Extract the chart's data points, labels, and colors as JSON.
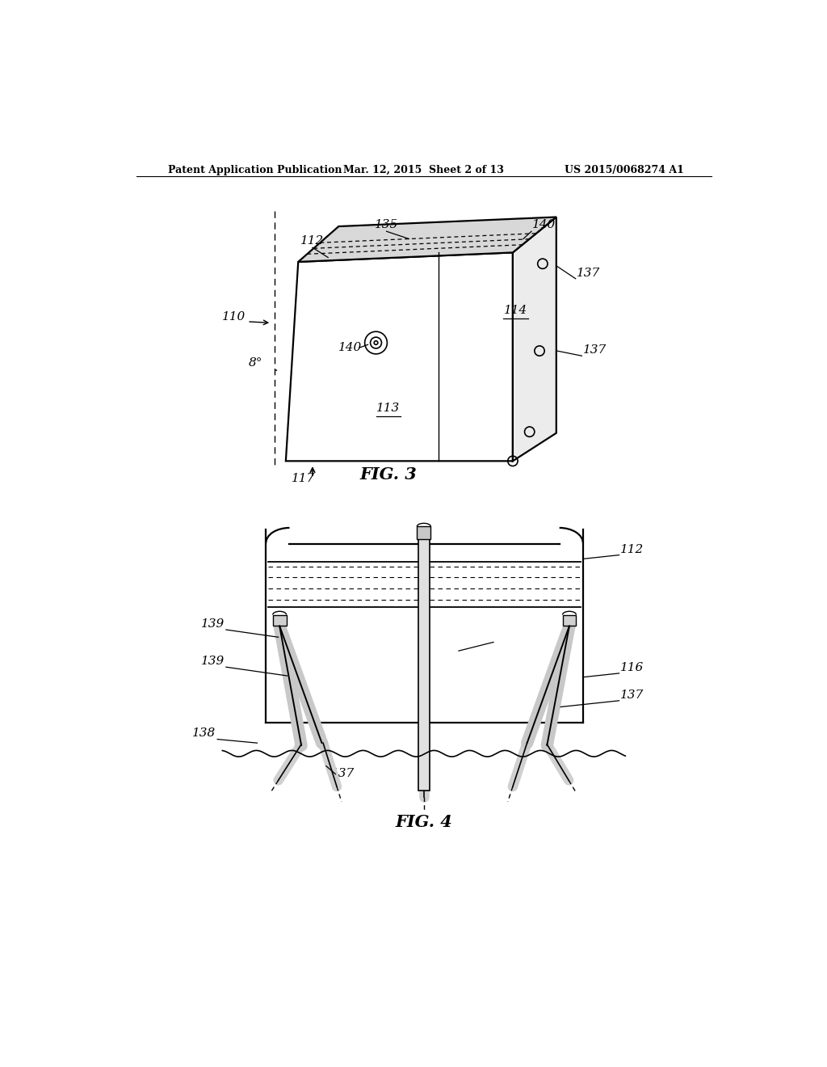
{
  "background_color": "#ffffff",
  "header_left": "Patent Application Publication",
  "header_mid": "Mar. 12, 2015  Sheet 2 of 13",
  "header_right": "US 2015/0068274 A1",
  "fig3_label": "FIG. 3",
  "fig4_label": "FIG. 4"
}
